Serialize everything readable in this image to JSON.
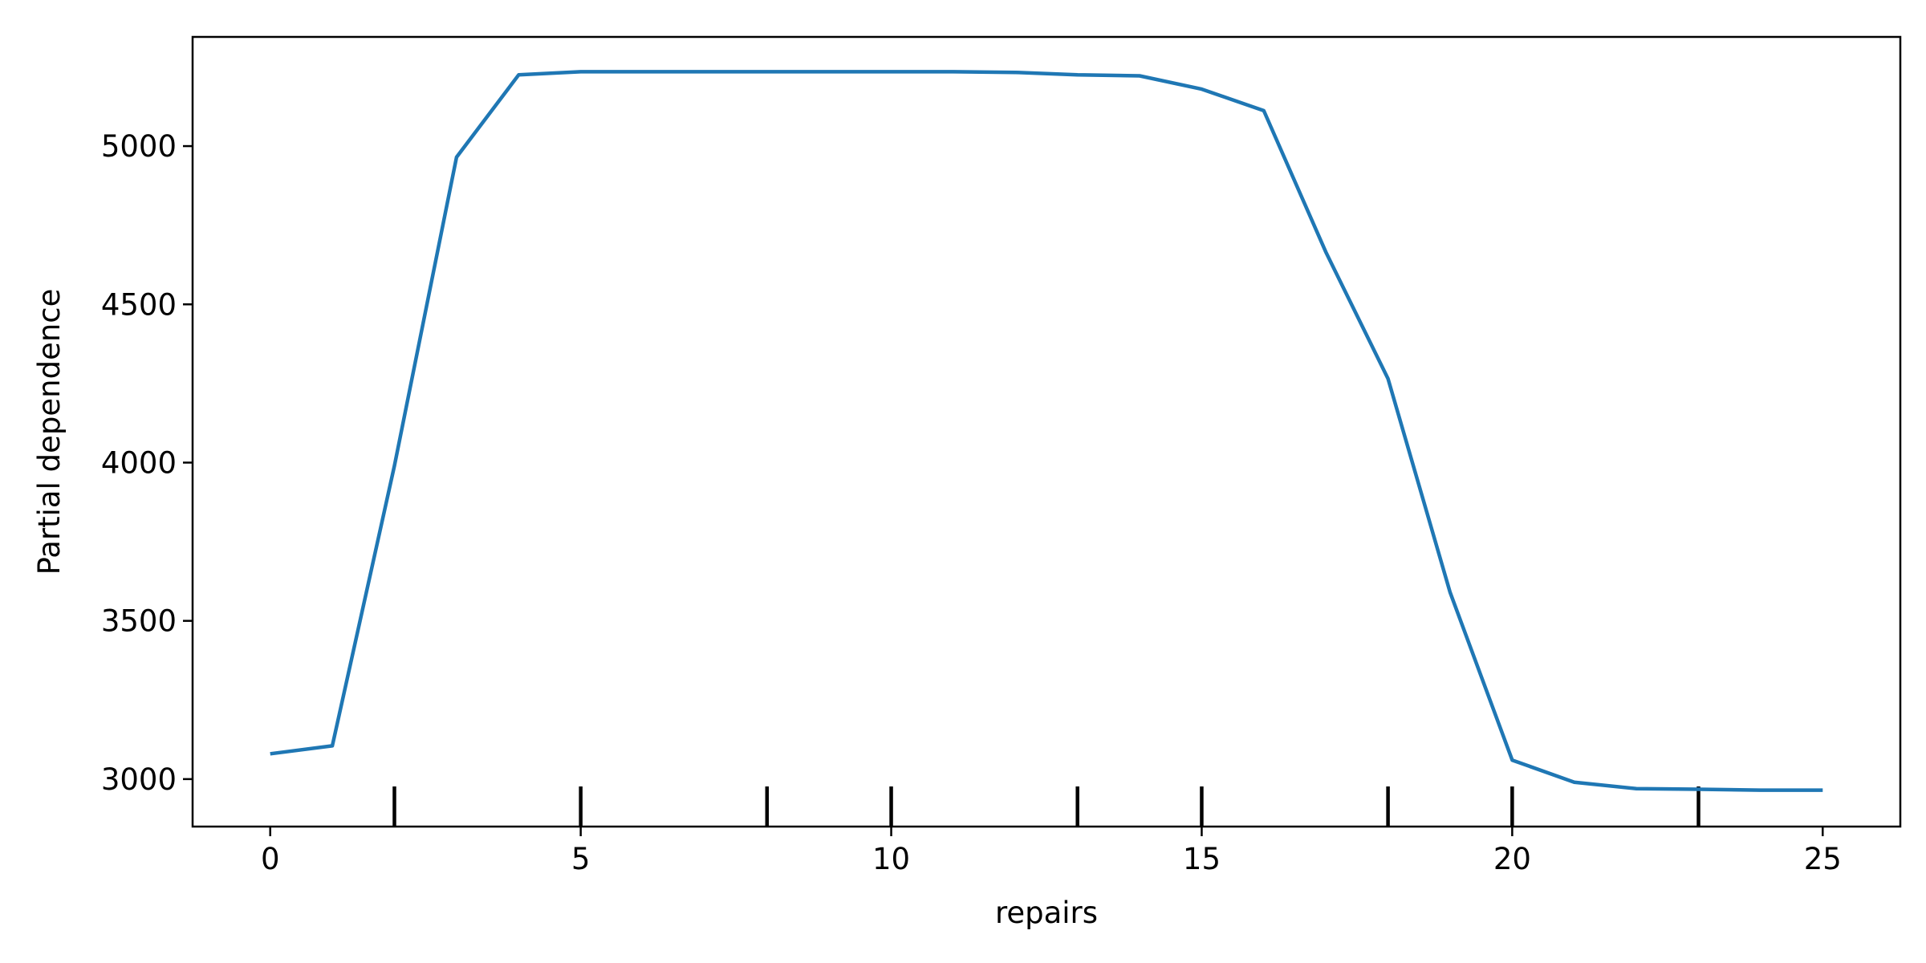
{
  "chart_data": {
    "type": "line",
    "title": "",
    "xlabel": "repairs",
    "ylabel": "Partial dependence",
    "xlim": [
      -1.25,
      26.25
    ],
    "ylim": [
      2850,
      5345
    ],
    "xticks": [
      0,
      5,
      10,
      15,
      20,
      25
    ],
    "yticks": [
      3000,
      3500,
      4000,
      4500,
      5000
    ],
    "grid": false,
    "colors": {
      "line": "#1f77b4",
      "rug": "#000000",
      "axes": "#000000"
    },
    "series": [
      {
        "x": [
          0,
          1,
          2,
          3,
          4,
          5,
          6,
          7,
          8,
          9,
          10,
          11,
          12,
          13,
          14,
          15,
          16,
          17,
          18,
          19,
          20,
          21,
          22,
          23,
          24,
          25
        ],
        "values": [
          3080,
          3105,
          3990,
          4965,
          5225,
          5235,
          5235,
          5235,
          5235,
          5235,
          5235,
          5235,
          5233,
          5225,
          5222,
          5180,
          5112,
          4665,
          4265,
          3590,
          3060,
          2990,
          2970,
          2968,
          2965,
          2965
        ]
      }
    ],
    "rug": {
      "x": [
        2,
        5,
        8,
        10,
        13,
        15,
        18,
        20,
        23
      ]
    }
  }
}
